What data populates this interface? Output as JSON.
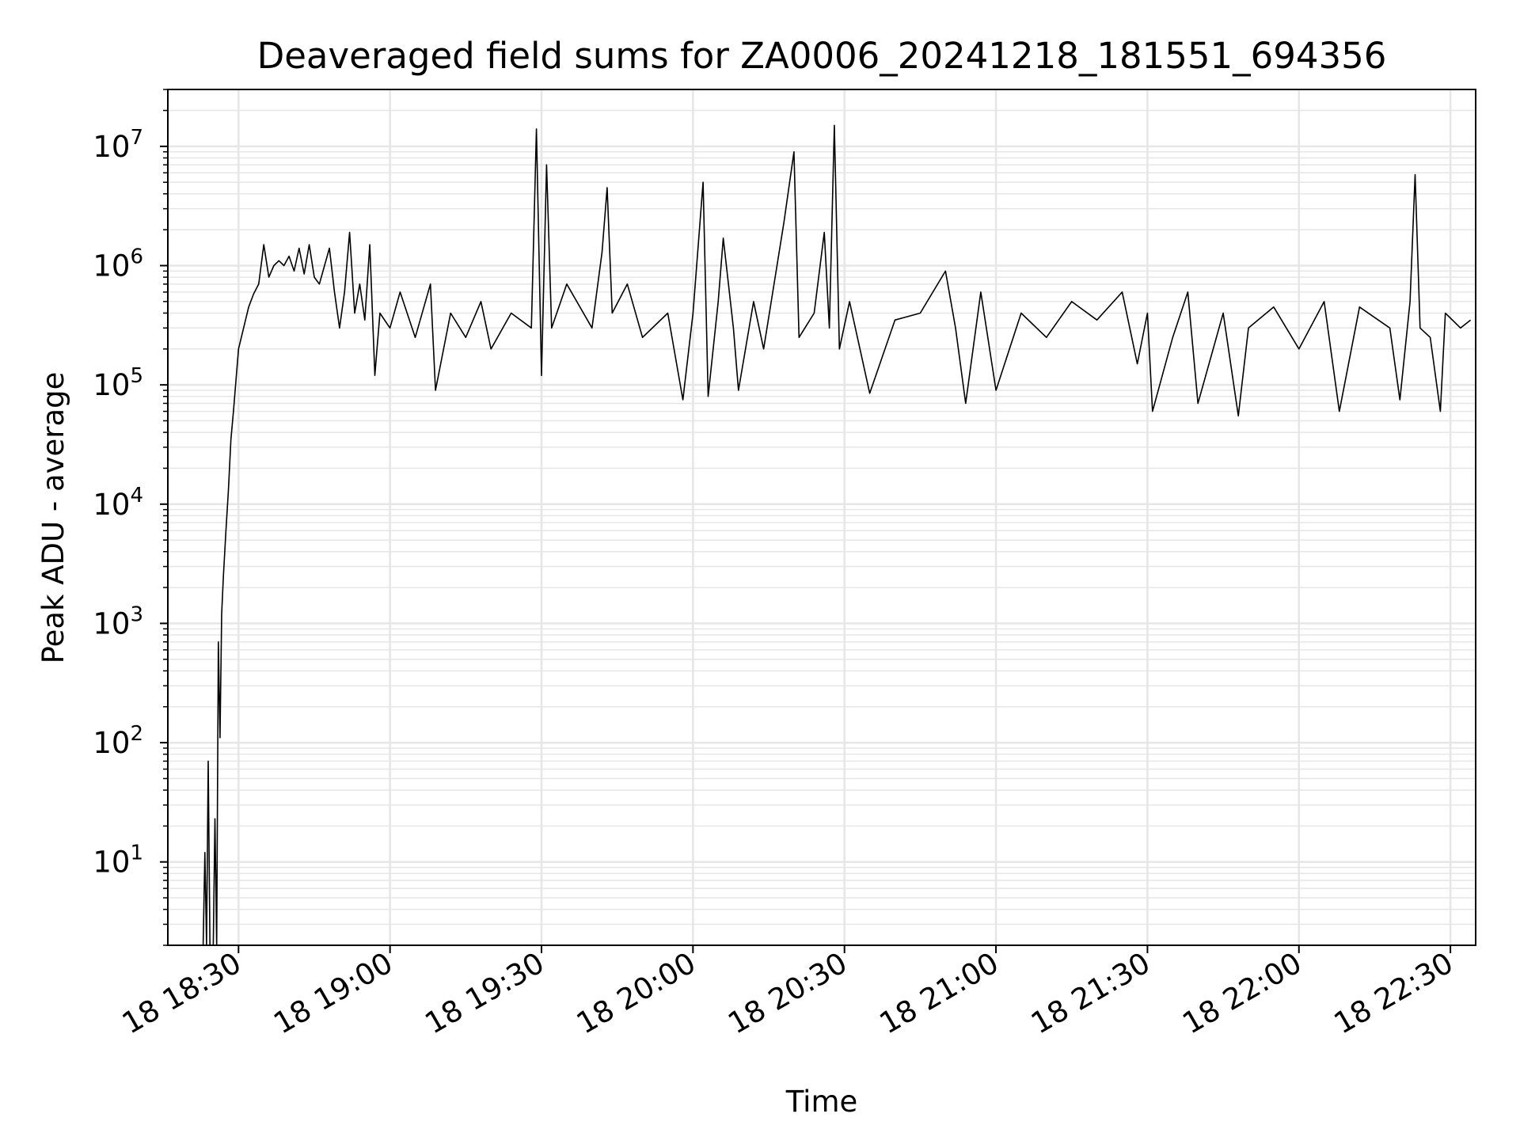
{
  "chart_data": {
    "type": "line",
    "title": "Deaveraged field sums for ZA0006_20241218_181551_694356",
    "xlabel": "Time",
    "ylabel": "Peak ADU - average",
    "yscale": "log",
    "ylim": [
      2,
      30000000
    ],
    "xlim": [
      "2024-12-18 18:16",
      "2024-12-18 22:35"
    ],
    "x_ticks": [
      {
        "value": "2024-12-18 18:30",
        "label": "18 18:30"
      },
      {
        "value": "2024-12-18 19:00",
        "label": "18 19:00"
      },
      {
        "value": "2024-12-18 19:30",
        "label": "18 19:30"
      },
      {
        "value": "2024-12-18 20:00",
        "label": "18 20:00"
      },
      {
        "value": "2024-12-18 20:30",
        "label": "18 20:30"
      },
      {
        "value": "2024-12-18 21:00",
        "label": "18 21:00"
      },
      {
        "value": "2024-12-18 21:30",
        "label": "18 21:30"
      },
      {
        "value": "2024-12-18 22:00",
        "label": "18 22:00"
      },
      {
        "value": "2024-12-18 22:30",
        "label": "18 22:30"
      }
    ],
    "y_ticks": [
      {
        "value": 10,
        "base": "10",
        "exp": "1"
      },
      {
        "value": 100,
        "base": "10",
        "exp": "2"
      },
      {
        "value": 1000,
        "base": "10",
        "exp": "3"
      },
      {
        "value": 10000,
        "base": "10",
        "exp": "4"
      },
      {
        "value": 100000,
        "base": "10",
        "exp": "5"
      },
      {
        "value": 1000000,
        "base": "10",
        "exp": "6"
      },
      {
        "value": 10000000,
        "base": "10",
        "exp": "7"
      }
    ],
    "grid": true,
    "line_color": "#000000",
    "grid_color": "#e6e6e6",
    "series": [
      {
        "points": [
          [
            "2024-12-18 18:23",
            2
          ],
          [
            "2024-12-18 18:23:20",
            12
          ],
          [
            "2024-12-18 18:23:40",
            2
          ],
          [
            "2024-12-18 18:24",
            70
          ],
          [
            "2024-12-18 18:24:20",
            2
          ],
          [
            "2024-12-18 18:25",
            2
          ],
          [
            "2024-12-18 18:25:20",
            23
          ],
          [
            "2024-12-18 18:25:40",
            2
          ],
          [
            "2024-12-18 18:26",
            700
          ],
          [
            "2024-12-18 18:26:20",
            110
          ],
          [
            "2024-12-18 18:26:40",
            1200
          ],
          [
            "2024-12-18 18:27",
            2500
          ],
          [
            "2024-12-18 18:27:30",
            6000
          ],
          [
            "2024-12-18 18:28",
            13000
          ],
          [
            "2024-12-18 18:28:30",
            35000
          ],
          [
            "2024-12-18 18:29",
            60000
          ],
          [
            "2024-12-18 18:29:30",
            110000
          ],
          [
            "2024-12-18 18:30",
            200000
          ],
          [
            "2024-12-18 18:31",
            300000
          ],
          [
            "2024-12-18 18:32",
            450000
          ],
          [
            "2024-12-18 18:33",
            580000
          ],
          [
            "2024-12-18 18:34",
            700000
          ],
          [
            "2024-12-18 18:35",
            1500000
          ],
          [
            "2024-12-18 18:36",
            800000
          ],
          [
            "2024-12-18 18:37",
            1000000
          ],
          [
            "2024-12-18 18:38",
            1100000
          ],
          [
            "2024-12-18 18:39",
            1000000
          ],
          [
            "2024-12-18 18:40",
            1200000
          ],
          [
            "2024-12-18 18:41",
            900000
          ],
          [
            "2024-12-18 18:42",
            1400000
          ],
          [
            "2024-12-18 18:43",
            850000
          ],
          [
            "2024-12-18 18:44",
            1500000
          ],
          [
            "2024-12-18 18:45",
            800000
          ],
          [
            "2024-12-18 18:46",
            700000
          ],
          [
            "2024-12-18 18:48",
            1400000
          ],
          [
            "2024-12-18 18:49",
            600000
          ],
          [
            "2024-12-18 18:50",
            300000
          ],
          [
            "2024-12-18 18:51",
            600000
          ],
          [
            "2024-12-18 18:52",
            1900000
          ],
          [
            "2024-12-18 18:53",
            400000
          ],
          [
            "2024-12-18 18:54",
            700000
          ],
          [
            "2024-12-18 18:55",
            350000
          ],
          [
            "2024-12-18 18:56",
            1500000
          ],
          [
            "2024-12-18 18:57",
            120000
          ],
          [
            "2024-12-18 18:58",
            400000
          ],
          [
            "2024-12-18 19:00",
            300000
          ],
          [
            "2024-12-18 19:02",
            600000
          ],
          [
            "2024-12-18 19:05",
            250000
          ],
          [
            "2024-12-18 19:08",
            700000
          ],
          [
            "2024-12-18 19:09",
            90000
          ],
          [
            "2024-12-18 19:12",
            400000
          ],
          [
            "2024-12-18 19:15",
            250000
          ],
          [
            "2024-12-18 19:18",
            500000
          ],
          [
            "2024-12-18 19:20",
            200000
          ],
          [
            "2024-12-18 19:24",
            400000
          ],
          [
            "2024-12-18 19:28",
            300000
          ],
          [
            "2024-12-18 19:29",
            14000000
          ],
          [
            "2024-12-18 19:30",
            120000
          ],
          [
            "2024-12-18 19:31",
            7000000
          ],
          [
            "2024-12-18 19:32",
            300000
          ],
          [
            "2024-12-18 19:35",
            700000
          ],
          [
            "2024-12-18 19:40",
            300000
          ],
          [
            "2024-12-18 19:42",
            1300000
          ],
          [
            "2024-12-18 19:43",
            4500000
          ],
          [
            "2024-12-18 19:44",
            400000
          ],
          [
            "2024-12-18 19:47",
            700000
          ],
          [
            "2024-12-18 19:50",
            250000
          ],
          [
            "2024-12-18 19:55",
            400000
          ],
          [
            "2024-12-18 19:58",
            75000
          ],
          [
            "2024-12-18 20:00",
            400000
          ],
          [
            "2024-12-18 20:02",
            5000000
          ],
          [
            "2024-12-18 20:03",
            80000
          ],
          [
            "2024-12-18 20:05",
            500000
          ],
          [
            "2024-12-18 20:06",
            1700000
          ],
          [
            "2024-12-18 20:08",
            300000
          ],
          [
            "2024-12-18 20:09",
            90000
          ],
          [
            "2024-12-18 20:12",
            500000
          ],
          [
            "2024-12-18 20:14",
            200000
          ],
          [
            "2024-12-18 20:18",
            2300000
          ],
          [
            "2024-12-18 20:20",
            9000000
          ],
          [
            "2024-12-18 20:21",
            250000
          ],
          [
            "2024-12-18 20:24",
            400000
          ],
          [
            "2024-12-18 20:26",
            1900000
          ],
          [
            "2024-12-18 20:27",
            300000
          ],
          [
            "2024-12-18 20:28",
            15000000
          ],
          [
            "2024-12-18 20:29",
            200000
          ],
          [
            "2024-12-18 20:31",
            500000
          ],
          [
            "2024-12-18 20:35",
            85000
          ],
          [
            "2024-12-18 20:40",
            350000
          ],
          [
            "2024-12-18 20:45",
            400000
          ],
          [
            "2024-12-18 20:50",
            900000
          ],
          [
            "2024-12-18 20:52",
            300000
          ],
          [
            "2024-12-18 20:54",
            70000
          ],
          [
            "2024-12-18 20:57",
            600000
          ],
          [
            "2024-12-18 21:00",
            90000
          ],
          [
            "2024-12-18 21:05",
            400000
          ],
          [
            "2024-12-18 21:10",
            250000
          ],
          [
            "2024-12-18 21:15",
            500000
          ],
          [
            "2024-12-18 21:20",
            350000
          ],
          [
            "2024-12-18 21:25",
            600000
          ],
          [
            "2024-12-18 21:28",
            150000
          ],
          [
            "2024-12-18 21:30",
            400000
          ],
          [
            "2024-12-18 21:31",
            60000
          ],
          [
            "2024-12-18 21:35",
            250000
          ],
          [
            "2024-12-18 21:38",
            600000
          ],
          [
            "2024-12-18 21:40",
            70000
          ],
          [
            "2024-12-18 21:45",
            400000
          ],
          [
            "2024-12-18 21:48",
            55000
          ],
          [
            "2024-12-18 21:50",
            300000
          ],
          [
            "2024-12-18 21:55",
            450000
          ],
          [
            "2024-12-18 22:00",
            200000
          ],
          [
            "2024-12-18 22:05",
            500000
          ],
          [
            "2024-12-18 22:08",
            60000
          ],
          [
            "2024-12-18 22:12",
            450000
          ],
          [
            "2024-12-18 22:18",
            300000
          ],
          [
            "2024-12-18 22:20",
            75000
          ],
          [
            "2024-12-18 22:22",
            500000
          ],
          [
            "2024-12-18 22:23",
            5800000
          ],
          [
            "2024-12-18 22:24",
            300000
          ],
          [
            "2024-12-18 22:26",
            250000
          ],
          [
            "2024-12-18 22:28",
            60000
          ],
          [
            "2024-12-18 22:29",
            400000
          ],
          [
            "2024-12-18 22:32",
            300000
          ],
          [
            "2024-12-18 22:34",
            350000
          ]
        ]
      }
    ]
  }
}
